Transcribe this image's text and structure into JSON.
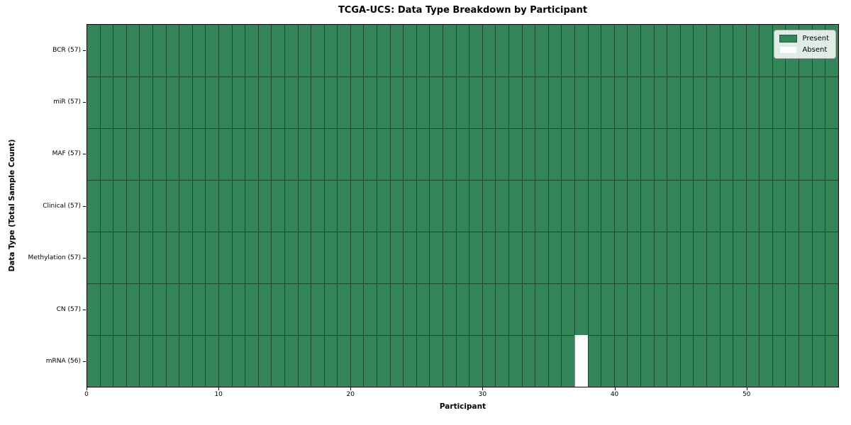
{
  "chart_data": {
    "type": "heatmap",
    "title": "TCGA-UCS: Data Type Breakdown by Participant",
    "xlabel": "Participant",
    "ylabel": "Data Type (Total Sample Count)",
    "n_participants": 57,
    "x_ticks": [
      0,
      10,
      20,
      30,
      40,
      50
    ],
    "xlim": [
      0,
      57
    ],
    "rows": [
      {
        "label": "BCR (57)",
        "count": 57,
        "absent_participants": []
      },
      {
        "label": "miR (57)",
        "count": 57,
        "absent_participants": []
      },
      {
        "label": "MAF (57)",
        "count": 57,
        "absent_participants": []
      },
      {
        "label": "Clinical (57)",
        "count": 57,
        "absent_participants": []
      },
      {
        "label": "Methylation (57)",
        "count": 57,
        "absent_participants": []
      },
      {
        "label": "CN (57)",
        "count": 57,
        "absent_participants": []
      },
      {
        "label": "mRNA (56)",
        "count": 56,
        "absent_participants": [
          37
        ]
      }
    ],
    "legend": [
      {
        "label": "Present",
        "color": "#34865a"
      },
      {
        "label": "Absent",
        "color": "#ffffff"
      }
    ],
    "legend_position": "upper right",
    "colors": {
      "present": "#34865a",
      "absent": "#ffffff"
    }
  }
}
